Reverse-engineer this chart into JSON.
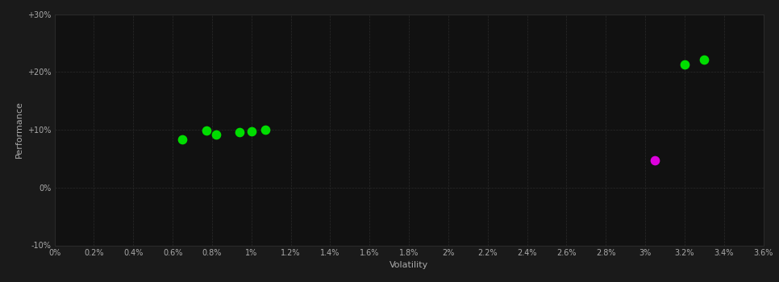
{
  "background_color": "#1a1a1a",
  "plot_bg_color": "#111111",
  "grid_color": "#2a2a2a",
  "text_color": "#aaaaaa",
  "xlabel": "Volatility",
  "ylabel": "Performance",
  "xlim": [
    0.0,
    0.036
  ],
  "ylim": [
    -0.1,
    0.3
  ],
  "xtick_values": [
    0.0,
    0.002,
    0.004,
    0.006,
    0.008,
    0.01,
    0.012,
    0.014,
    0.016,
    0.018,
    0.02,
    0.022,
    0.024,
    0.026,
    0.028,
    0.03,
    0.032,
    0.034,
    0.036
  ],
  "ytick_values": [
    -0.1,
    0.0,
    0.1,
    0.2,
    0.3
  ],
  "ytick_labels": [
    "-10%",
    "0%",
    "+10%",
    "+20%",
    "+30%"
  ],
  "green_points": [
    [
      0.0065,
      0.083
    ],
    [
      0.0077,
      0.098
    ],
    [
      0.0082,
      0.092
    ],
    [
      0.0094,
      0.096
    ],
    [
      0.01,
      0.097
    ],
    [
      0.0107,
      0.1
    ],
    [
      0.032,
      0.213
    ],
    [
      0.033,
      0.221
    ]
  ],
  "magenta_points": [
    [
      0.0305,
      0.047
    ]
  ],
  "green_color": "#00dd00",
  "magenta_color": "#dd00dd",
  "marker_size": 55
}
